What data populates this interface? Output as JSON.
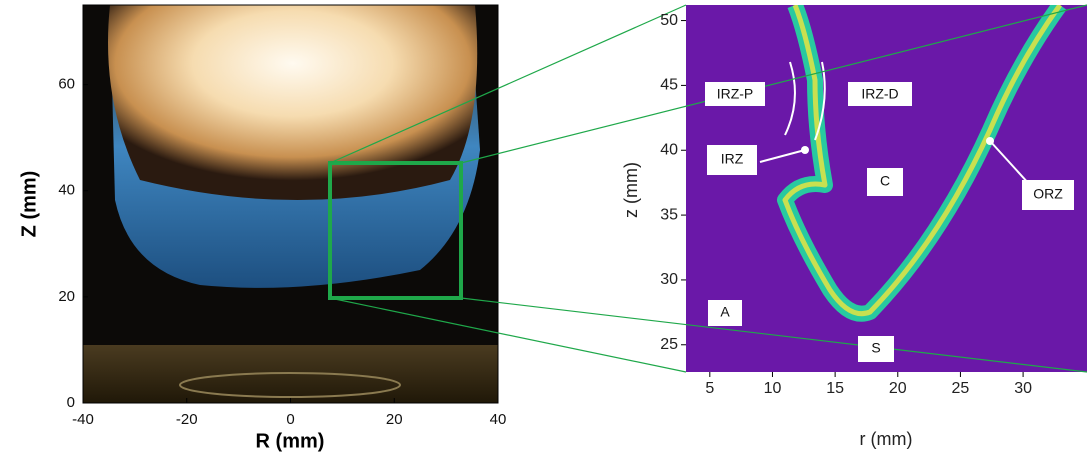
{
  "left": {
    "xlabel": "R (mm)",
    "ylabel": "Z (mm)",
    "xlim": [
      -40,
      40
    ],
    "ylim": [
      0,
      75
    ],
    "xticks": [
      -40,
      -20,
      0,
      20,
      40
    ],
    "yticks": [
      0,
      20,
      40,
      60
    ]
  },
  "right": {
    "xlabel": "r (mm)",
    "ylabel": "z (mm)",
    "xlim": [
      3.1,
      35.1
    ],
    "ylim": [
      22.9,
      51.2
    ],
    "xticks": [
      5,
      10,
      15,
      20,
      25,
      30
    ],
    "yticks": [
      25,
      30,
      35,
      40,
      45,
      50
    ],
    "annotations": [
      "IRZ-P",
      "IRZ-D",
      "IRZ",
      "C",
      "ORZ",
      "A",
      "S"
    ]
  }
}
